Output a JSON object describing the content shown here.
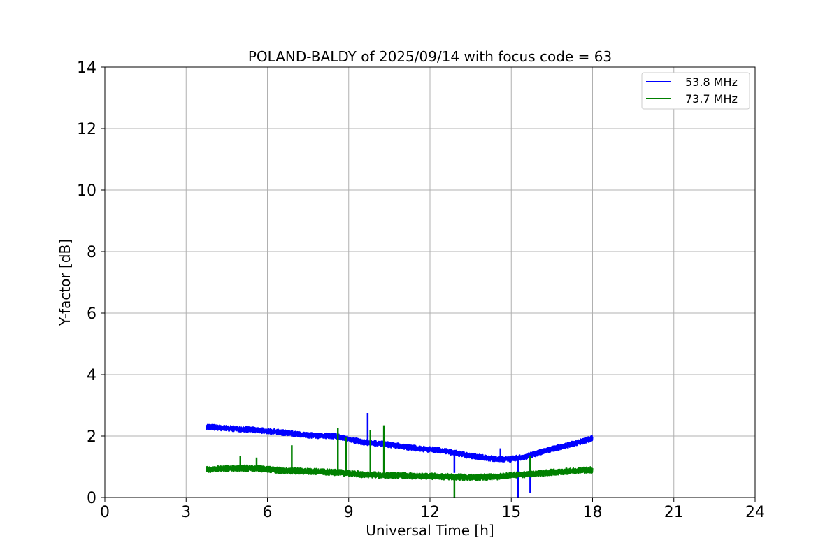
{
  "chart_data": {
    "type": "line",
    "title": "POLAND-BALDY of 2025/09/14 with focus code = 63",
    "xlabel": "Universal Time [h]",
    "ylabel": "Y-factor [dB]",
    "xlim": [
      0,
      24
    ],
    "ylim": [
      0,
      14
    ],
    "xticks": [
      0,
      3,
      6,
      9,
      12,
      15,
      18,
      21,
      24
    ],
    "yticks": [
      0,
      2,
      4,
      6,
      8,
      10,
      12,
      14
    ],
    "grid": true,
    "legend_position": "top-right",
    "series": [
      {
        "name": "53.8 MHz",
        "color": "#0000ff",
        "x": [
          3.75,
          4.5,
          5.5,
          6.5,
          7.5,
          8.5,
          9.5,
          10.5,
          11.5,
          12.5,
          13.5,
          14.5,
          15.0,
          15.5,
          16.0,
          16.5,
          17.0,
          17.5,
          18.0
        ],
        "y": [
          2.3,
          2.25,
          2.2,
          2.12,
          2.02,
          2.0,
          1.8,
          1.72,
          1.6,
          1.52,
          1.35,
          1.25,
          1.25,
          1.32,
          1.45,
          1.58,
          1.68,
          1.8,
          1.92
        ],
        "spikes": [
          {
            "x": 9.7,
            "y": 2.75
          },
          {
            "x": 12.9,
            "y": 0.8
          },
          {
            "x": 15.25,
            "y": 0.0
          },
          {
            "x": 15.7,
            "y": 0.15
          },
          {
            "x": 14.6,
            "y": 1.6
          }
        ]
      },
      {
        "name": "73.7 MHz",
        "color": "#008000",
        "x": [
          3.75,
          4.5,
          5.5,
          6.5,
          7.5,
          8.5,
          9.5,
          10.5,
          11.5,
          12.5,
          13.5,
          14.5,
          15.5,
          16.5,
          17.5,
          18.0
        ],
        "y": [
          0.9,
          0.95,
          0.95,
          0.88,
          0.85,
          0.82,
          0.75,
          0.72,
          0.7,
          0.68,
          0.65,
          0.68,
          0.75,
          0.82,
          0.88,
          0.9
        ],
        "spikes": [
          {
            "x": 5.0,
            "y": 1.35
          },
          {
            "x": 5.6,
            "y": 1.3
          },
          {
            "x": 6.9,
            "y": 1.7
          },
          {
            "x": 8.6,
            "y": 2.25
          },
          {
            "x": 8.9,
            "y": 1.95
          },
          {
            "x": 9.8,
            "y": 2.2
          },
          {
            "x": 10.3,
            "y": 2.35
          },
          {
            "x": 12.9,
            "y": 0.0
          },
          {
            "x": 15.7,
            "y": 1.35
          }
        ]
      }
    ]
  }
}
